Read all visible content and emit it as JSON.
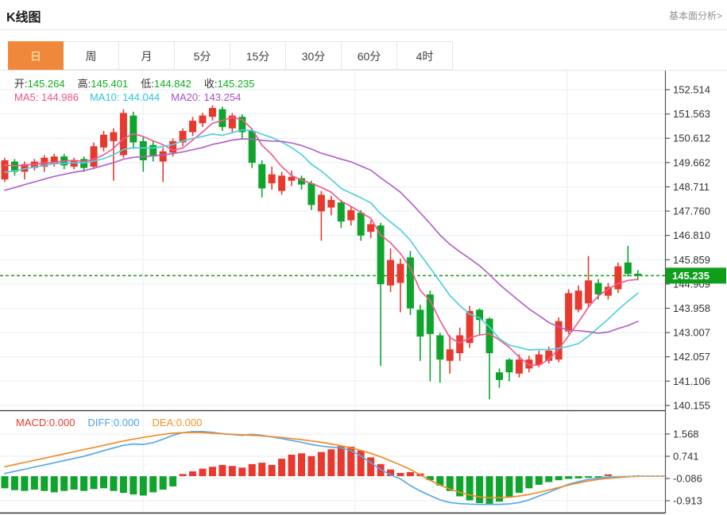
{
  "header": {
    "title": "K线图",
    "link": "基本面分析>"
  },
  "tabs": [
    {
      "key": "day",
      "label": "日",
      "active": true
    },
    {
      "key": "week",
      "label": "周",
      "active": false
    },
    {
      "key": "month",
      "label": "月",
      "active": false
    },
    {
      "key": "5min",
      "label": "5分",
      "active": false
    },
    {
      "key": "15min",
      "label": "15分",
      "active": false
    },
    {
      "key": "30min",
      "label": "30分",
      "active": false
    },
    {
      "key": "60min",
      "label": "60分",
      "active": false
    },
    {
      "key": "4hour",
      "label": "4时",
      "active": false
    }
  ],
  "legend": {
    "ohlc": [
      {
        "key": "open",
        "label": "开:",
        "value": "145.264"
      },
      {
        "key": "high",
        "label": "高:",
        "value": "145.401"
      },
      {
        "key": "low",
        "label": "低:",
        "value": "144.842"
      },
      {
        "key": "close",
        "label": "收:",
        "value": "145.235"
      }
    ],
    "ma": [
      {
        "key": "ma5",
        "text": "MA5: 144.986",
        "color": "#ed4f8a"
      },
      {
        "key": "ma10",
        "text": "MA10: 144.044",
        "color": "#2ec3dc"
      },
      {
        "key": "ma20",
        "text": "MA20: 143.254",
        "color": "#a94fc4"
      }
    ],
    "macd": [
      {
        "key": "macd",
        "text": "MACD:0.000",
        "color": "#e8392f"
      },
      {
        "key": "diff",
        "text": "DIFF:0.000",
        "color": "#4da3ea"
      },
      {
        "key": "dea",
        "text": "DEA:0.000",
        "color": "#f5921e"
      }
    ]
  },
  "chart_data": {
    "type": "candlestick+macd",
    "colors": {
      "up": "#e8392f",
      "down": "#0fa42c",
      "ma5": "#ed5e8f",
      "ma10": "#53cee0",
      "ma20": "#b264c8",
      "diff": "#5aa9e6",
      "dea": "#f08c28",
      "grid": "#e9eef5",
      "axis": "#555555",
      "axis_text": "#333333",
      "price_line": "#0ca00a",
      "price_tag_bg": "#0f9d1c",
      "price_tag_text": "#ffffff",
      "macd_zero_line": "#8fd8e8",
      "pane_border": "#333333"
    },
    "price_pane": {
      "y_ticks": [
        152.514,
        151.563,
        150.612,
        149.662,
        148.711,
        147.76,
        146.81,
        145.859,
        144.909,
        143.958,
        143.007,
        142.057,
        141.106,
        140.155
      ],
      "current_price": 145.235,
      "ma_periods": [
        5,
        10,
        20
      ],
      "ma_seed_closes": [
        147.2,
        147.35,
        147.5,
        147.65,
        147.8,
        147.95,
        148.1,
        148.25,
        148.4,
        148.55,
        148.7,
        148.85,
        149.0,
        149.15,
        149.3,
        149.4,
        149.5,
        149.55,
        149.6
      ],
      "candles": [
        [
          149.0,
          149.85,
          148.9,
          149.75
        ],
        [
          149.7,
          149.8,
          149.15,
          149.3
        ],
        [
          149.3,
          149.7,
          149.0,
          149.6
        ],
        [
          149.45,
          149.8,
          149.35,
          149.7
        ],
        [
          149.5,
          149.95,
          149.3,
          149.85
        ],
        [
          149.6,
          150.0,
          149.5,
          149.9
        ],
        [
          149.9,
          150.0,
          149.4,
          149.55
        ],
        [
          149.5,
          149.85,
          149.4,
          149.75
        ],
        [
          149.8,
          149.9,
          149.3,
          149.45
        ],
        [
          149.5,
          150.45,
          149.4,
          150.3
        ],
        [
          150.25,
          150.9,
          150.1,
          150.75
        ],
        [
          150.5,
          151.0,
          148.95,
          150.85
        ],
        [
          149.95,
          151.75,
          149.85,
          151.6
        ],
        [
          151.5,
          151.65,
          150.2,
          150.45
        ],
        [
          150.5,
          150.7,
          149.3,
          149.75
        ],
        [
          150.35,
          150.5,
          149.7,
          149.9
        ],
        [
          149.7,
          150.25,
          148.9,
          150.1
        ],
        [
          150.05,
          150.6,
          149.9,
          150.5
        ],
        [
          150.45,
          151.0,
          150.3,
          150.9
        ],
        [
          150.85,
          151.45,
          150.7,
          151.3
        ],
        [
          151.2,
          151.6,
          151.05,
          151.5
        ],
        [
          151.45,
          151.9,
          151.3,
          151.8
        ],
        [
          151.75,
          151.85,
          150.9,
          151.05
        ],
        [
          151.0,
          151.6,
          150.85,
          151.5
        ],
        [
          151.45,
          151.55,
          150.6,
          150.85
        ],
        [
          150.9,
          151.0,
          149.45,
          149.65
        ],
        [
          149.6,
          149.75,
          148.3,
          148.65
        ],
        [
          148.85,
          149.5,
          148.6,
          149.2
        ],
        [
          148.55,
          149.3,
          148.4,
          149.15
        ],
        [
          148.95,
          149.35,
          148.75,
          149.1
        ],
        [
          149.05,
          149.15,
          148.6,
          148.8
        ],
        [
          148.85,
          148.95,
          147.8,
          148.0
        ],
        [
          147.75,
          148.55,
          146.6,
          148.4
        ],
        [
          147.9,
          148.35,
          147.6,
          148.2
        ],
        [
          148.1,
          148.2,
          147.1,
          147.35
        ],
        [
          147.4,
          147.95,
          147.2,
          147.8
        ],
        [
          147.7,
          147.8,
          146.6,
          146.8
        ],
        [
          146.95,
          147.4,
          146.7,
          147.25
        ],
        [
          147.2,
          147.3,
          141.7,
          144.9
        ],
        [
          144.85,
          146.3,
          144.6,
          145.85
        ],
        [
          144.95,
          145.9,
          143.8,
          145.7
        ],
        [
          145.95,
          146.2,
          143.7,
          143.95
        ],
        [
          143.9,
          144.1,
          141.9,
          142.85
        ],
        [
          144.5,
          144.65,
          141.1,
          142.95
        ],
        [
          142.9,
          143.0,
          141.05,
          141.95
        ],
        [
          141.9,
          142.9,
          141.4,
          142.35
        ],
        [
          142.2,
          143.2,
          141.9,
          142.9
        ],
        [
          142.6,
          144.05,
          142.4,
          143.85
        ],
        [
          143.9,
          143.95,
          142.9,
          143.5
        ],
        [
          143.55,
          143.6,
          140.4,
          142.2
        ],
        [
          141.45,
          141.6,
          140.85,
          141.15
        ],
        [
          141.95,
          142.0,
          141.1,
          141.45
        ],
        [
          141.4,
          142.15,
          141.25,
          141.95
        ],
        [
          141.6,
          142.1,
          141.45,
          141.95
        ],
        [
          141.75,
          142.3,
          141.65,
          142.15
        ],
        [
          141.9,
          142.45,
          141.8,
          142.3
        ],
        [
          141.95,
          143.6,
          141.85,
          143.45
        ],
        [
          143.05,
          144.7,
          142.95,
          144.55
        ],
        [
          143.9,
          144.85,
          143.8,
          144.65
        ],
        [
          144.15,
          146.0,
          144.0,
          145.05
        ],
        [
          144.95,
          145.1,
          144.3,
          144.5
        ],
        [
          144.45,
          144.95,
          144.3,
          144.8
        ],
        [
          144.7,
          145.75,
          144.55,
          145.6
        ],
        [
          145.75,
          146.4,
          145.2,
          145.3
        ],
        [
          145.31,
          145.45,
          145.05,
          145.235
        ]
      ]
    },
    "macd_pane": {
      "y_ticks": [
        1.568,
        0.741,
        -0.086,
        -0.913
      ],
      "current_value": 0.0,
      "bars": [
        -0.45,
        -0.52,
        -0.55,
        -0.5,
        -0.55,
        -0.6,
        -0.55,
        -0.5,
        -0.55,
        -0.48,
        -0.45,
        -0.55,
        -0.62,
        -0.68,
        -0.72,
        -0.6,
        -0.5,
        -0.38,
        0.08,
        0.18,
        0.28,
        0.35,
        0.42,
        0.38,
        0.32,
        0.45,
        0.5,
        0.42,
        0.65,
        0.8,
        0.85,
        0.75,
        0.9,
        1.0,
        1.12,
        1.1,
        0.95,
        0.7,
        0.45,
        0.25,
        0.12,
        0.15,
        0.1,
        -0.15,
        -0.35,
        -0.55,
        -0.75,
        -0.9,
        -1.0,
        -1.03,
        -0.95,
        -0.8,
        -0.62,
        -0.45,
        -0.32,
        -0.22,
        -0.15,
        -0.1,
        -0.08,
        -0.06,
        -0.05,
        0.07,
        -0.03,
        -0.02,
        0.0
      ],
      "diff": [
        0.1,
        0.18,
        0.26,
        0.34,
        0.42,
        0.5,
        0.58,
        0.66,
        0.74,
        0.84,
        0.95,
        1.05,
        1.15,
        1.2,
        1.18,
        1.25,
        1.38,
        1.52,
        1.62,
        1.66,
        1.66,
        1.63,
        1.58,
        1.55,
        1.52,
        1.56,
        1.52,
        1.46,
        1.4,
        1.33,
        1.26,
        1.18,
        1.12,
        1.08,
        1.05,
        0.95,
        0.75,
        0.5,
        0.25,
        0.05,
        -0.1,
        -0.35,
        -0.55,
        -0.72,
        -0.88,
        -0.98,
        -1.02,
        -1.04,
        -1.05,
        -1.05,
        -1.05,
        -1.03,
        -0.98,
        -0.88,
        -0.74,
        -0.6,
        -0.45,
        -0.3,
        -0.2,
        -0.12,
        -0.07,
        -0.03,
        -0.02,
        -0.01,
        0.0
      ],
      "dea": [
        0.35,
        0.43,
        0.51,
        0.59,
        0.67,
        0.75,
        0.83,
        0.91,
        0.99,
        1.07,
        1.15,
        1.23,
        1.31,
        1.38,
        1.44,
        1.5,
        1.56,
        1.6,
        1.62,
        1.63,
        1.62,
        1.6,
        1.58,
        1.56,
        1.54,
        1.52,
        1.5,
        1.47,
        1.44,
        1.4,
        1.36,
        1.31,
        1.26,
        1.2,
        1.13,
        1.05,
        0.96,
        0.85,
        0.72,
        0.57,
        0.42,
        0.25,
        0.05,
        -0.15,
        -0.33,
        -0.48,
        -0.6,
        -0.7,
        -0.77,
        -0.8,
        -0.8,
        -0.78,
        -0.74,
        -0.68,
        -0.6,
        -0.51,
        -0.42,
        -0.33,
        -0.25,
        -0.18,
        -0.12,
        -0.08,
        -0.05,
        -0.02,
        0.0
      ]
    }
  }
}
